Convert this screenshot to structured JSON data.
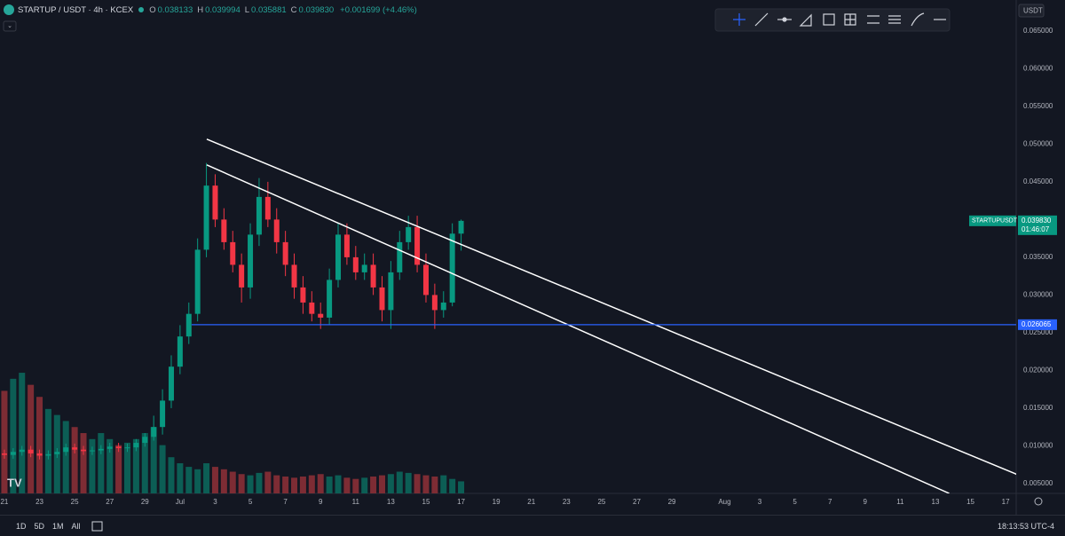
{
  "header": {
    "symbol": "STARTUP / USDT · 4h · KCEX",
    "ohlc": [
      {
        "key": "O",
        "value": "0.038133"
      },
      {
        "key": "H",
        "value": "0.039994"
      },
      {
        "key": "L",
        "value": "0.035881"
      },
      {
        "key": "C",
        "value": "0.039830"
      }
    ],
    "change": "+0.001699 (+4.46%)",
    "currency": "USDT"
  },
  "chart_data": {
    "type": "candlestick",
    "x": [
      20.5,
      21,
      21.5,
      22,
      22.5,
      23,
      23.5,
      24,
      24.5,
      25,
      25.5,
      26,
      26.5,
      27,
      27.5,
      28,
      28.5,
      29,
      29.5,
      30,
      30.5,
      31,
      31.5,
      32,
      32.5,
      33,
      33.5,
      34,
      34.5,
      35,
      35.5,
      36,
      36.5,
      37,
      37.5,
      38,
      38.5,
      39,
      39.5,
      40,
      40.5,
      41,
      41.5,
      42,
      42.5,
      43,
      43.5,
      44,
      44.5,
      45,
      45.5,
      46,
      46.5,
      47
    ],
    "open": [
      0.0092,
      0.009,
      0.0088,
      0.0092,
      0.0095,
      0.009,
      0.0087,
      0.0089,
      0.0092,
      0.0098,
      0.0095,
      0.0093,
      0.0094,
      0.0096,
      0.0099,
      0.0097,
      0.0098,
      0.0104,
      0.0112,
      0.0125,
      0.016,
      0.0205,
      0.0245,
      0.0275,
      0.036,
      0.0445,
      0.04,
      0.037,
      0.034,
      0.031,
      0.038,
      0.043,
      0.04,
      0.037,
      0.034,
      0.031,
      0.029,
      0.0275,
      0.027,
      0.032,
      0.038,
      0.035,
      0.033,
      0.034,
      0.031,
      0.028,
      0.033,
      0.037,
      0.039,
      0.034,
      0.03,
      0.028,
      0.029,
      0.038133
    ],
    "high": [
      0.0097,
      0.0095,
      0.0097,
      0.01,
      0.01,
      0.0095,
      0.0094,
      0.0097,
      0.0103,
      0.0103,
      0.01,
      0.0099,
      0.0101,
      0.0104,
      0.0104,
      0.0103,
      0.0109,
      0.0117,
      0.014,
      0.0175,
      0.022,
      0.026,
      0.029,
      0.0375,
      0.0475,
      0.046,
      0.0415,
      0.0385,
      0.0355,
      0.0395,
      0.0455,
      0.045,
      0.0415,
      0.0385,
      0.0355,
      0.0325,
      0.0305,
      0.029,
      0.0335,
      0.0395,
      0.0395,
      0.0365,
      0.0355,
      0.0355,
      0.0325,
      0.0345,
      0.0385,
      0.0405,
      0.0405,
      0.0355,
      0.0315,
      0.0305,
      0.0395,
      0.039994
    ],
    "low": [
      0.0085,
      0.0083,
      0.0083,
      0.0087,
      0.0085,
      0.0082,
      0.0082,
      0.0084,
      0.0087,
      0.009,
      0.0088,
      0.0088,
      0.0089,
      0.0091,
      0.0092,
      0.0092,
      0.0093,
      0.0099,
      0.0107,
      0.0115,
      0.015,
      0.0195,
      0.0235,
      0.0265,
      0.035,
      0.039,
      0.036,
      0.033,
      0.029,
      0.0295,
      0.0365,
      0.039,
      0.0355,
      0.0325,
      0.0295,
      0.0275,
      0.0265,
      0.0255,
      0.026,
      0.031,
      0.034,
      0.032,
      0.032,
      0.03,
      0.0265,
      0.0255,
      0.032,
      0.036,
      0.033,
      0.029,
      0.0255,
      0.027,
      0.0285,
      0.035881
    ],
    "close": [
      0.009,
      0.0088,
      0.0092,
      0.0095,
      0.009,
      0.0087,
      0.0089,
      0.0092,
      0.0098,
      0.0095,
      0.0093,
      0.0094,
      0.0096,
      0.0099,
      0.0097,
      0.0098,
      0.0104,
      0.0112,
      0.0125,
      0.016,
      0.0205,
      0.0245,
      0.0275,
      0.036,
      0.0445,
      0.04,
      0.037,
      0.034,
      0.031,
      0.038,
      0.043,
      0.04,
      0.037,
      0.034,
      0.031,
      0.029,
      0.0275,
      0.027,
      0.032,
      0.038,
      0.035,
      0.033,
      0.034,
      0.031,
      0.028,
      0.033,
      0.037,
      0.039,
      0.034,
      0.03,
      0.028,
      0.029,
      0.03813,
      0.03983
    ],
    "volume": [
      70,
      85,
      95,
      100,
      90,
      80,
      70,
      65,
      60,
      55,
      50,
      45,
      50,
      45,
      40,
      42,
      45,
      50,
      55,
      40,
      30,
      25,
      22,
      20,
      25,
      22,
      20,
      18,
      16,
      15,
      17,
      18,
      15,
      14,
      13,
      14,
      15,
      16,
      14,
      15,
      13,
      12,
      13,
      14,
      15,
      16,
      18,
      17,
      16,
      15,
      14,
      15,
      12,
      10
    ],
    "up_color": "#089981",
    "down_color": "#f23645",
    "volume_up_color": "#0c5e55",
    "volume_down_color": "#7d2c34",
    "xlim": [
      20.75,
      78.6
    ],
    "ylim": [
      0.0037,
      0.0691
    ],
    "y2lim": [
      0,
      409
    ],
    "xticks": [
      21,
      23,
      25,
      27,
      29,
      {
        "value": 31,
        "label": "Jul"
      },
      {
        "value": 33,
        "label": "3"
      },
      {
        "value": 35,
        "label": "5"
      },
      {
        "value": 37,
        "label": "7"
      },
      {
        "value": 39,
        "label": "9"
      },
      {
        "value": 41,
        "label": "11"
      },
      {
        "value": 43,
        "label": "13"
      },
      {
        "value": 45,
        "label": "15"
      },
      {
        "value": 47,
        "label": "17"
      },
      {
        "value": 49,
        "label": "19"
      },
      {
        "value": 51,
        "label": "21"
      },
      {
        "value": 53,
        "label": "23"
      },
      {
        "value": 55,
        "label": "25"
      },
      {
        "value": 57,
        "label": "27"
      },
      {
        "value": 59,
        "label": "29"
      },
      {
        "value": 62,
        "label": "Aug"
      },
      {
        "value": 64,
        "label": "3"
      },
      {
        "value": 66,
        "label": "5"
      },
      {
        "value": 68,
        "label": "7"
      },
      {
        "value": 70,
        "label": "9"
      },
      {
        "value": 72,
        "label": "11"
      },
      {
        "value": 74,
        "label": "13"
      },
      {
        "value": 76,
        "label": "15"
      },
      {
        "value": 78,
        "label": "17"
      }
    ],
    "yticks": [
      {
        "value": 0.005,
        "label": "0.005000"
      },
      {
        "value": 0.01,
        "label": "0.010000"
      },
      {
        "value": 0.015,
        "label": "0.015000"
      },
      {
        "value": 0.02,
        "label": "0.020000"
      },
      {
        "value": 0.025,
        "label": "0.025000"
      },
      {
        "value": 0.03,
        "label": "0.030000"
      },
      {
        "value": 0.035,
        "label": "0.035000"
      },
      {
        "value": 0.04,
        "label": "0.040000"
      },
      {
        "value": 0.045,
        "label": "0.045000"
      },
      {
        "value": 0.05,
        "label": "0.050000"
      },
      {
        "value": 0.055,
        "label": "0.055000"
      },
      {
        "value": 0.06,
        "label": "0.060000"
      },
      {
        "value": 0.065,
        "label": "0.065000"
      }
    ],
    "drawings": [
      {
        "type": "trendline",
        "points": [
          [
            32.52,
            0.05065
          ],
          [
            78.68,
            0.00618
          ]
        ],
        "color": "#ffffff"
      },
      {
        "type": "trendline",
        "points": [
          [
            32.52,
            0.04724
          ],
          [
            74.79,
            0.0037
          ]
        ],
        "color": "#ffffff"
      },
      {
        "type": "horizontal",
        "start": 31.66,
        "value": {
          "value": 0.026065,
          "label": "0.026065"
        },
        "color": "#2962ff"
      }
    ],
    "price_tag": {
      "symbol": "STARTUPUSDT",
      "value": {
        "value": 0.03983,
        "label": "0.039830"
      },
      "countdown": "01:46:07"
    }
  },
  "footer": {
    "ranges": [
      "1D",
      "5D",
      "1M",
      "All"
    ],
    "clock": "18:13:53 UTC-4"
  }
}
